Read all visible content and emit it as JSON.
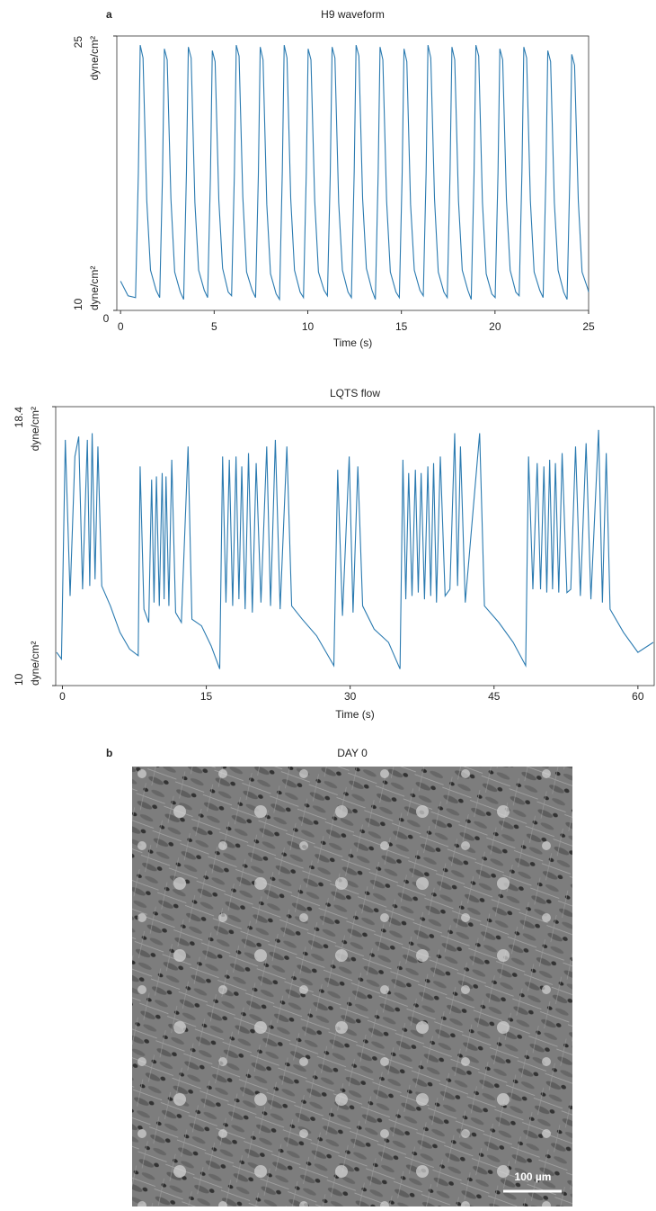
{
  "panel_labels": [
    "a",
    "b"
  ],
  "chart_data": [
    {
      "type": "line",
      "title": "H9 waveform",
      "x_label": "Time (s)",
      "y_unit": "dyne/cm²",
      "y_origin_label": "0",
      "color": "#2a7ab0",
      "xlim": [
        -0.2,
        25
      ],
      "xticks": [
        0,
        5,
        10,
        15,
        20,
        25
      ],
      "ylim": [
        10,
        25
      ],
      "yticks": [
        10,
        25
      ],
      "x": [
        0,
        0.4,
        0.8,
        0.95,
        1.05,
        1.2,
        1.4,
        1.6,
        1.9,
        2.09,
        2.24,
        2.34,
        2.49,
        2.69,
        2.89,
        3.19,
        3.37,
        3.52,
        3.62,
        3.77,
        3.97,
        4.17,
        4.47,
        4.65,
        4.8,
        4.9,
        5.05,
        5.25,
        5.45,
        5.75,
        5.93,
        6.08,
        6.18,
        6.33,
        6.53,
        6.73,
        7.03,
        7.21,
        7.36,
        7.46,
        7.61,
        7.81,
        8.01,
        8.31,
        8.49,
        8.64,
        8.74,
        8.89,
        9.09,
        9.29,
        9.59,
        9.77,
        9.92,
        10.02,
        10.17,
        10.37,
        10.57,
        10.87,
        11.05,
        11.2,
        11.3,
        11.45,
        11.65,
        11.85,
        12.15,
        12.33,
        12.48,
        12.58,
        12.73,
        12.93,
        13.13,
        13.43,
        13.61,
        13.76,
        13.86,
        14.01,
        14.21,
        14.41,
        14.71,
        14.89,
        15.04,
        15.14,
        15.29,
        15.49,
        15.69,
        15.99,
        16.17,
        16.32,
        16.42,
        16.57,
        16.77,
        16.97,
        17.27,
        17.45,
        17.6,
        17.7,
        17.85,
        18.05,
        18.25,
        18.55,
        18.73,
        18.88,
        18.98,
        19.13,
        19.33,
        19.53,
        19.83,
        20.01,
        20.16,
        20.26,
        20.41,
        20.61,
        20.81,
        21.11,
        21.29,
        21.44,
        21.54,
        21.69,
        21.89,
        22.09,
        22.39,
        22.57,
        22.72,
        22.82,
        22.97,
        23.17,
        23.37,
        23.67,
        23.85,
        24.0,
        24.1,
        24.25,
        24.45,
        24.65,
        24.95,
        25
      ],
      "values": [
        11.6,
        10.8,
        10.7,
        17.5,
        24.5,
        23.8,
        16,
        12.2,
        11.1,
        10.7,
        17.4,
        24.3,
        23.7,
        16.1,
        12.1,
        11.0,
        10.6,
        17.6,
        24.4,
        23.8,
        15.9,
        12.2,
        11.1,
        10.7,
        17.3,
        24.2,
        23.6,
        16.0,
        12.3,
        11.0,
        10.8,
        17.5,
        24.5,
        23.9,
        16.2,
        12.1,
        11.1,
        10.7,
        17.4,
        24.4,
        23.7,
        15.8,
        12.0,
        10.9,
        10.6,
        17.6,
        24.5,
        23.8,
        16.1,
        12.2,
        11.0,
        10.7,
        17.5,
        24.3,
        23.7,
        16.0,
        12.1,
        11.1,
        10.8,
        17.4,
        24.4,
        23.8,
        15.9,
        12.2,
        11.0,
        10.7,
        17.6,
        24.5,
        23.9,
        16.1,
        12.3,
        11.1,
        10.6,
        17.5,
        24.4,
        23.7,
        16.0,
        12.1,
        11.0,
        10.7,
        17.4,
        24.3,
        23.6,
        15.8,
        12.2,
        11.1,
        10.8,
        17.5,
        24.5,
        23.8,
        16.1,
        12.1,
        11.0,
        10.7,
        17.6,
        24.4,
        23.7,
        16.0,
        12.2,
        11.1,
        10.6,
        17.4,
        24.5,
        23.9,
        15.9,
        12.0,
        10.9,
        10.7,
        17.5,
        24.3,
        23.7,
        16.1,
        12.2,
        11.0,
        10.8,
        17.6,
        24.4,
        23.8,
        16.0,
        12.1,
        11.1,
        10.7,
        17.4,
        24.2,
        23.6,
        15.9,
        12.2,
        11.0,
        10.6,
        17.5,
        24.0,
        23.4,
        16.0,
        12.1,
        11.2,
        11.0
      ]
    },
    {
      "type": "line",
      "title": "LQTS  flow",
      "x_label": "Time (s)",
      "y_unit": "dyne/cm²",
      "color": "#2a7ab0",
      "xlim": [
        -0.7,
        61.7
      ],
      "xticks": [
        0,
        15,
        30,
        45,
        60
      ],
      "ylim": [
        10,
        18.4
      ],
      "yticks": [
        10,
        18.4
      ],
      "x": [
        -0.6,
        -0.1,
        0.3,
        0.8,
        1.3,
        1.7,
        2.1,
        2.6,
        2.85,
        3.1,
        3.4,
        3.7,
        4.1,
        5.0,
        6.0,
        7.0,
        7.9,
        8.1,
        8.5,
        9.0,
        9.3,
        9.55,
        9.8,
        10.1,
        10.4,
        10.6,
        10.8,
        11.1,
        11.4,
        11.8,
        12.4,
        13.1,
        13.5,
        14.5,
        15.5,
        16.4,
        16.7,
        17.05,
        17.4,
        17.75,
        18.1,
        18.4,
        18.7,
        19.05,
        19.4,
        19.8,
        20.2,
        20.7,
        21.3,
        21.7,
        22.2,
        22.7,
        23.4,
        23.9,
        25,
        26.5,
        28.3,
        28.7,
        29.2,
        29.9,
        30.3,
        30.8,
        31.3,
        32.5,
        34,
        35.2,
        35.5,
        35.8,
        36.1,
        36.45,
        36.8,
        37.1,
        37.4,
        37.75,
        38.1,
        38.4,
        38.7,
        39.0,
        39.4,
        39.9,
        40.4,
        40.9,
        41.2,
        41.5,
        42.0,
        43.5,
        44.0,
        45.5,
        47,
        48.3,
        48.6,
        49.05,
        49.5,
        49.85,
        50.2,
        50.5,
        50.8,
        51.1,
        51.4,
        51.75,
        52.1,
        52.6,
        53.0,
        53.5,
        54.0,
        54.6,
        55.1,
        55.9,
        56.3,
        56.7,
        57.1,
        58.5,
        60,
        61.6
      ],
      "values": [
        11.0,
        10.8,
        17.4,
        12.7,
        16.9,
        17.5,
        12.9,
        17.4,
        13.0,
        17.6,
        13.2,
        17.2,
        13.0,
        12.4,
        11.6,
        11.1,
        10.9,
        16.6,
        12.3,
        11.9,
        16.2,
        12.5,
        16.3,
        12.4,
        16.4,
        12.6,
        16.3,
        12.4,
        16.8,
        12.2,
        11.9,
        17.2,
        12.0,
        11.8,
        11.2,
        10.5,
        16.9,
        12.5,
        16.8,
        12.4,
        16.9,
        12.6,
        16.6,
        12.3,
        17.0,
        12.2,
        16.7,
        12.5,
        17.2,
        12.4,
        17.4,
        12.3,
        17.2,
        12.4,
        12.0,
        11.5,
        10.6,
        16.5,
        12.1,
        16.9,
        12.2,
        16.6,
        12.4,
        11.7,
        11.3,
        10.5,
        16.8,
        12.6,
        16.4,
        12.7,
        16.5,
        12.8,
        16.4,
        12.6,
        16.6,
        12.7,
        16.7,
        12.5,
        16.9,
        12.7,
        12.9,
        17.6,
        13.0,
        17.2,
        12.5,
        17.6,
        12.4,
        11.9,
        11.3,
        10.6,
        16.9,
        12.9,
        16.7,
        12.9,
        16.6,
        12.8,
        16.8,
        12.9,
        16.7,
        12.8,
        17.0,
        12.8,
        12.9,
        17.2,
        12.7,
        17.3,
        12.6,
        17.7,
        12.5,
        17.0,
        12.3,
        11.6,
        11.0,
        11.3
      ]
    }
  ],
  "image": {
    "title": "DAY 0",
    "scale_bar": "100 µm"
  }
}
